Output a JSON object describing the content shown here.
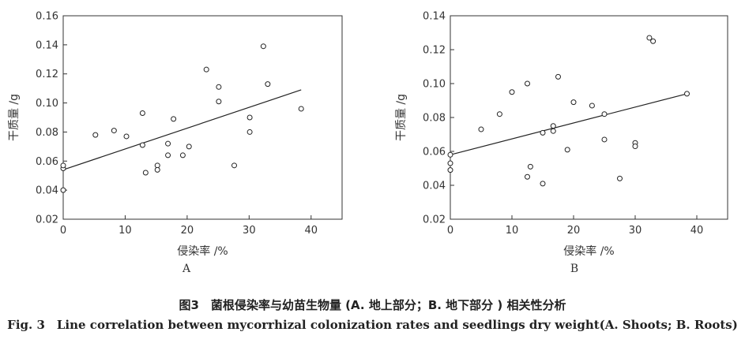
{
  "chart_data": [
    {
      "type": "scatter",
      "panel_label": "A",
      "xlabel": "侵染率 /%",
      "ylabel": "干质量 /g",
      "xlim": [
        0,
        45
      ],
      "ylim": [
        0.02,
        0.16
      ],
      "x_ticks": [
        "0",
        "10",
        "20",
        "30",
        "40"
      ],
      "y_ticks": [
        "0.02",
        "0.04",
        "0.06",
        "0.08",
        "0.10",
        "0.12",
        "0.14",
        "0.16"
      ],
      "grid": false,
      "points": [
        {
          "x": 0,
          "y": 0.04
        },
        {
          "x": 0,
          "y": 0.055
        },
        {
          "x": 0,
          "y": 0.057
        },
        {
          "x": 5.2,
          "y": 0.078
        },
        {
          "x": 8.2,
          "y": 0.081
        },
        {
          "x": 10.2,
          "y": 0.077
        },
        {
          "x": 12.8,
          "y": 0.093
        },
        {
          "x": 12.8,
          "y": 0.071
        },
        {
          "x": 13.3,
          "y": 0.052
        },
        {
          "x": 15.2,
          "y": 0.057
        },
        {
          "x": 15.2,
          "y": 0.054
        },
        {
          "x": 16.9,
          "y": 0.072
        },
        {
          "x": 16.9,
          "y": 0.064
        },
        {
          "x": 17.8,
          "y": 0.089
        },
        {
          "x": 19.3,
          "y": 0.064
        },
        {
          "x": 20.3,
          "y": 0.07
        },
        {
          "x": 23.1,
          "y": 0.123
        },
        {
          "x": 25.1,
          "y": 0.111
        },
        {
          "x": 25.1,
          "y": 0.101
        },
        {
          "x": 27.6,
          "y": 0.057
        },
        {
          "x": 30.1,
          "y": 0.09
        },
        {
          "x": 30.1,
          "y": 0.08
        },
        {
          "x": 32.3,
          "y": 0.139
        },
        {
          "x": 33.0,
          "y": 0.113
        },
        {
          "x": 38.4,
          "y": 0.096
        }
      ],
      "trendline": {
        "x": [
          0,
          38.4
        ],
        "y": [
          0.054,
          0.109
        ]
      }
    },
    {
      "type": "scatter",
      "panel_label": "B",
      "xlabel": "侵染率 /%",
      "ylabel": "干质量 /g",
      "xlim": [
        0,
        45
      ],
      "ylim": [
        0.02,
        0.14
      ],
      "x_ticks": [
        "0",
        "10",
        "20",
        "30",
        "40"
      ],
      "y_ticks": [
        "0.02",
        "0.04",
        "0.06",
        "0.08",
        "0.10",
        "0.12",
        "0.14"
      ],
      "grid": false,
      "points": [
        {
          "x": 0,
          "y": 0.058
        },
        {
          "x": 0,
          "y": 0.053
        },
        {
          "x": 0,
          "y": 0.049
        },
        {
          "x": 5.0,
          "y": 0.073
        },
        {
          "x": 8.0,
          "y": 0.082
        },
        {
          "x": 10.0,
          "y": 0.095
        },
        {
          "x": 12.5,
          "y": 0.1
        },
        {
          "x": 12.5,
          "y": 0.045
        },
        {
          "x": 13.0,
          "y": 0.051
        },
        {
          "x": 15.0,
          "y": 0.071
        },
        {
          "x": 15.0,
          "y": 0.041
        },
        {
          "x": 16.7,
          "y": 0.075
        },
        {
          "x": 16.7,
          "y": 0.072
        },
        {
          "x": 17.5,
          "y": 0.104
        },
        {
          "x": 19.0,
          "y": 0.061
        },
        {
          "x": 20.0,
          "y": 0.089
        },
        {
          "x": 23.0,
          "y": 0.087
        },
        {
          "x": 25.0,
          "y": 0.082
        },
        {
          "x": 25.0,
          "y": 0.067
        },
        {
          "x": 27.5,
          "y": 0.044
        },
        {
          "x": 30.0,
          "y": 0.065
        },
        {
          "x": 30.0,
          "y": 0.063
        },
        {
          "x": 32.3,
          "y": 0.127
        },
        {
          "x": 32.9,
          "y": 0.125
        },
        {
          "x": 38.4,
          "y": 0.094
        }
      ],
      "trendline": {
        "x": [
          0,
          38.4
        ],
        "y": [
          0.058,
          0.094
        ]
      }
    }
  ],
  "caption": {
    "cn": "图3　菌根侵染率与幼苗生物量 (A. 地上部分；B. 地下部分 ) 相关性分析",
    "en": "Fig. 3　Line correlation between mycorrhizal colonization rates and seedlings dry weight(A. Shoots; B. Roots)"
  }
}
